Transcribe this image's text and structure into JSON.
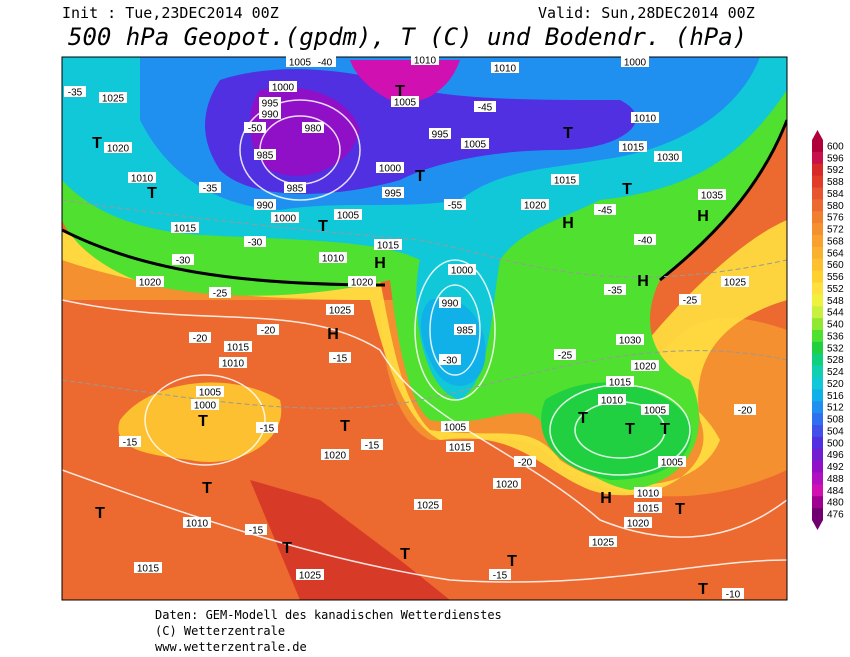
{
  "header": {
    "init": "Init : Tue,23DEC2014 00Z",
    "valid": "Valid: Sun,28DEC2014 00Z",
    "title": "500 hPa Geopot.(gpdm), T (C) und Bodendr. (hPa)"
  },
  "map": {
    "labels": [
      "1005",
      "-40",
      "1010",
      "1010",
      "1000",
      "-35",
      "1025",
      "1000",
      "995",
      "990",
      "-50",
      "980",
      "1005",
      "-45",
      "995",
      "1005",
      "1010",
      "1020",
      "1015",
      "1030",
      "985",
      "1000",
      "1010",
      "1015",
      "1035",
      "-35",
      "985",
      "995",
      "990",
      "1000",
      "1005",
      "-55",
      "1020",
      "-45",
      "1015",
      "1015",
      "-30",
      "-40",
      "1010",
      "-30",
      "1020",
      "1020",
      "1000",
      "-35",
      "-25",
      "1025",
      "-25",
      "1025",
      "990",
      "-20",
      "-20",
      "1015",
      "985",
      "1030",
      "-15",
      "1010",
      "-30",
      "-25",
      "1020",
      "1015",
      "1005",
      "1000",
      "1010",
      "1005",
      "-20",
      "-15",
      "-15",
      "-15",
      "1005",
      "1015",
      "1020",
      "-20",
      "1005",
      "1020",
      "1010",
      "1025",
      "1015",
      "1010",
      "-15",
      "1020",
      "1025",
      "1015",
      "1025",
      "-15",
      "-10"
    ],
    "markers": [
      "T",
      "T",
      "T",
      "T",
      "T",
      "T",
      "T",
      "H",
      "H",
      "H",
      "H",
      "H",
      "T",
      "T",
      "T",
      "T",
      "T",
      "T",
      "T",
      "T",
      "T",
      "T",
      "T",
      "H",
      "T"
    ]
  },
  "colorbar": {
    "levels": [
      600,
      596,
      592,
      588,
      584,
      580,
      576,
      572,
      568,
      564,
      560,
      556,
      552,
      548,
      544,
      540,
      536,
      532,
      528,
      524,
      520,
      516,
      512,
      508,
      504,
      500,
      496,
      492,
      488,
      484,
      480,
      476
    ],
    "colors": [
      "#b0003a",
      "#c8104a",
      "#d82828",
      "#e03c28",
      "#e65530",
      "#ec6a30",
      "#f07f30",
      "#f49030",
      "#f8a030",
      "#fab030",
      "#fcc030",
      "#fed030",
      "#ffe040",
      "#f0f040",
      "#c8f040",
      "#90e830",
      "#50e030",
      "#20d040",
      "#10d080",
      "#10d0b0",
      "#10c8d8",
      "#10b0e8",
      "#2090f0",
      "#3070f0",
      "#4050e8",
      "#5030e0",
      "#7020d0",
      "#9010c8",
      "#b010c0",
      "#d010b0",
      "#a00090",
      "#700070"
    ]
  },
  "footer": {
    "source": "Daten: GEM-Modell des kanadischen Wetterdienstes",
    "copyright": "(C) Wetterzentrale",
    "url": "www.wetterzentrale.de"
  }
}
